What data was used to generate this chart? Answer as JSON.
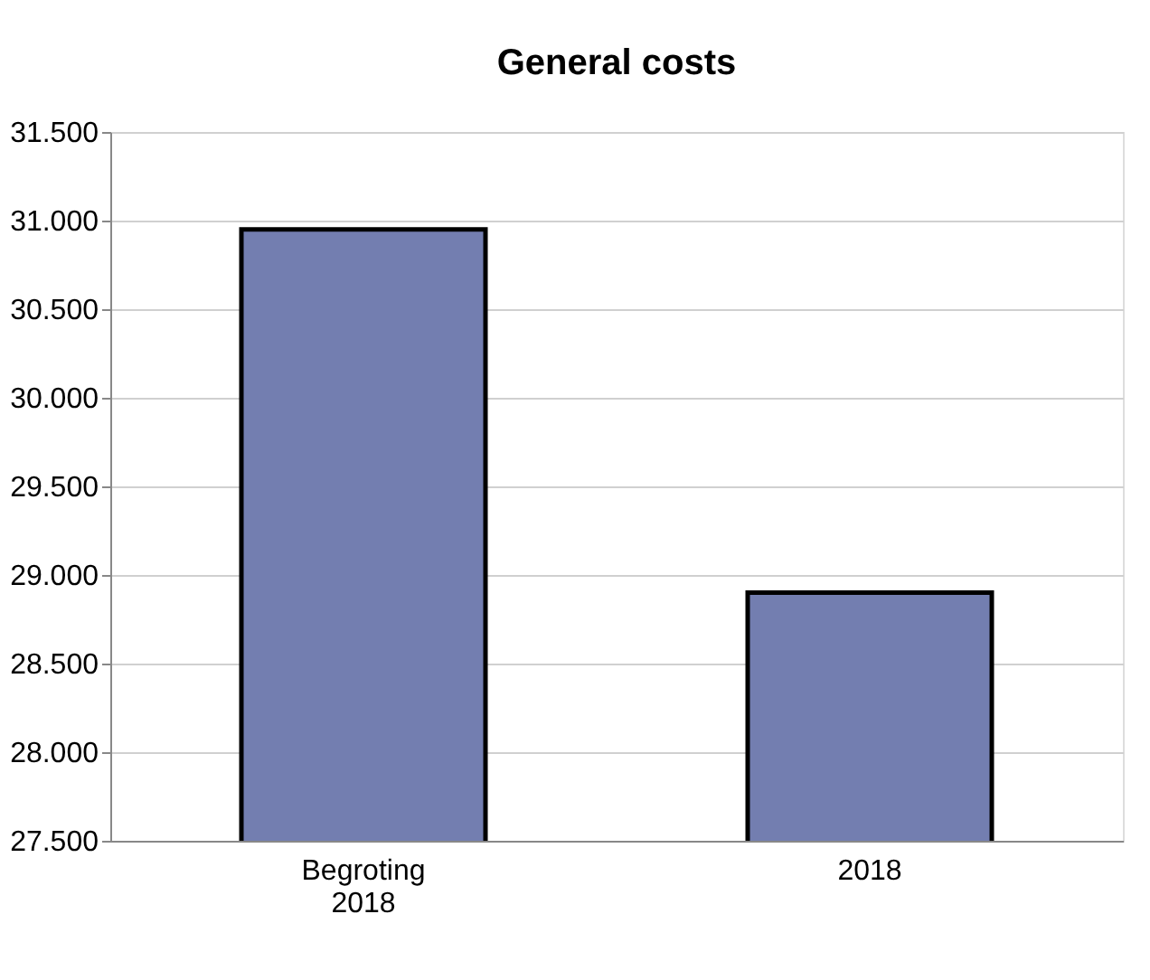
{
  "chart_data": {
    "type": "bar",
    "title": "General costs",
    "categories": [
      "Begroting 2018",
      "2018"
    ],
    "values": [
      30950,
      28900
    ],
    "color": "#737eb0",
    "ylim": [
      27500,
      31500
    ],
    "yticks": [
      {
        "value": 27500,
        "label": "27.500"
      },
      {
        "value": 28000,
        "label": "28.000"
      },
      {
        "value": 28500,
        "label": "28.500"
      },
      {
        "value": 29000,
        "label": "29.000"
      },
      {
        "value": 29500,
        "label": "29.500"
      },
      {
        "value": 30000,
        "label": "30.000"
      },
      {
        "value": 30500,
        "label": "30.500"
      },
      {
        "value": 31000,
        "label": "31.000"
      },
      {
        "value": 31500,
        "label": "31.500"
      }
    ],
    "grid": "y"
  }
}
